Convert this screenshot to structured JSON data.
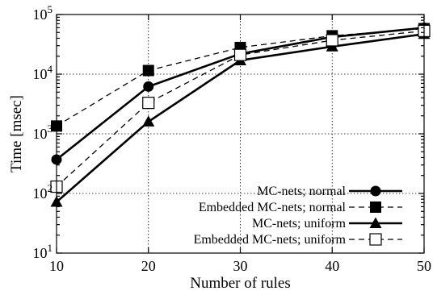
{
  "chart_data": {
    "type": "line",
    "xlabel": "Number of rules",
    "ylabel": "Time [msec]",
    "x": [
      10,
      20,
      30,
      40,
      50
    ],
    "xlim": [
      10,
      50
    ],
    "ylim": [
      10,
      100000
    ],
    "yscale": "log",
    "grid": true,
    "legend_position": "bottom-right",
    "x_ticks": [
      "10",
      "20",
      "30",
      "40",
      "50"
    ],
    "y_ticks": [
      {
        "value": 10,
        "base": "10",
        "exp": "1"
      },
      {
        "value": 100,
        "base": "10",
        "exp": "2"
      },
      {
        "value": 1000,
        "base": "10",
        "exp": "3"
      },
      {
        "value": 10000,
        "base": "10",
        "exp": "4"
      },
      {
        "value": 100000,
        "base": "10",
        "exp": "5"
      }
    ],
    "series": [
      {
        "name": "MC-nets; normal",
        "values": [
          370,
          6200,
          22000,
          42000,
          60000
        ],
        "marker": "circle",
        "dash": false
      },
      {
        "name": "Embedded MC-nets; normal",
        "values": [
          1350,
          11500,
          28000,
          44000,
          58000
        ],
        "marker": "square",
        "dash": true
      },
      {
        "name": "MC-nets; uniform",
        "values": [
          72,
          1600,
          17000,
          29000,
          47000
        ],
        "marker": "triangle",
        "dash": false
      },
      {
        "name": "Embedded MC-nets; uniform",
        "values": [
          130,
          3300,
          21000,
          37000,
          53000
        ],
        "marker": "open-square",
        "dash": true
      }
    ]
  }
}
